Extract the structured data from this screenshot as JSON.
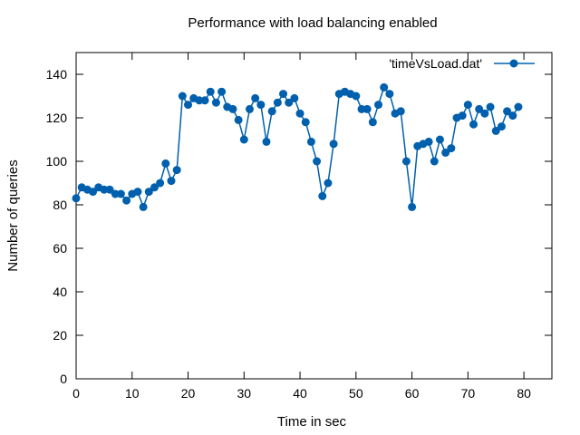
{
  "chart_data": {
    "type": "line",
    "title": "Performance with load balancing enabled",
    "xlabel": "Time in sec",
    "ylabel": "Number of queries",
    "xlim": [
      0,
      85
    ],
    "ylim": [
      0,
      150
    ],
    "xticks": [
      0,
      10,
      20,
      30,
      40,
      50,
      60,
      70,
      80
    ],
    "yticks": [
      0,
      20,
      40,
      60,
      80,
      100,
      120,
      140
    ],
    "grid": false,
    "legend": "top-right",
    "series": [
      {
        "name": "'timeVsLoad.dat'",
        "color": "#0060ad",
        "marker": "circle",
        "x": [
          0,
          1,
          2,
          3,
          4,
          5,
          6,
          7,
          8,
          9,
          10,
          11,
          12,
          13,
          14,
          15,
          16,
          17,
          18,
          19,
          20,
          21,
          22,
          23,
          24,
          25,
          26,
          27,
          28,
          29,
          30,
          31,
          32,
          33,
          34,
          35,
          36,
          37,
          38,
          39,
          40,
          41,
          42,
          43,
          44,
          45,
          46,
          47,
          48,
          49,
          50,
          51,
          52,
          53,
          54,
          55,
          56,
          57,
          58,
          59,
          60,
          61,
          62,
          63,
          64,
          65,
          66,
          67,
          68,
          69,
          70,
          71,
          72,
          73,
          74,
          75,
          76,
          77,
          78,
          79
        ],
        "y": [
          83,
          88,
          87,
          86,
          88,
          87,
          87,
          85,
          85,
          82,
          85,
          86,
          79,
          86,
          88,
          90,
          99,
          91,
          96,
          130,
          126,
          129,
          128,
          128,
          132,
          127,
          132,
          125,
          124,
          119,
          110,
          124,
          129,
          126,
          109,
          123,
          127,
          131,
          127,
          129,
          122,
          118,
          109,
          100,
          84,
          90,
          108,
          131,
          132,
          131,
          130,
          124,
          124,
          118,
          126,
          134,
          131,
          122,
          123,
          100,
          79,
          107,
          108,
          109,
          100,
          110,
          104,
          106,
          120,
          121,
          126,
          117,
          124,
          122,
          125,
          114,
          116,
          123,
          121,
          125
        ]
      }
    ]
  }
}
